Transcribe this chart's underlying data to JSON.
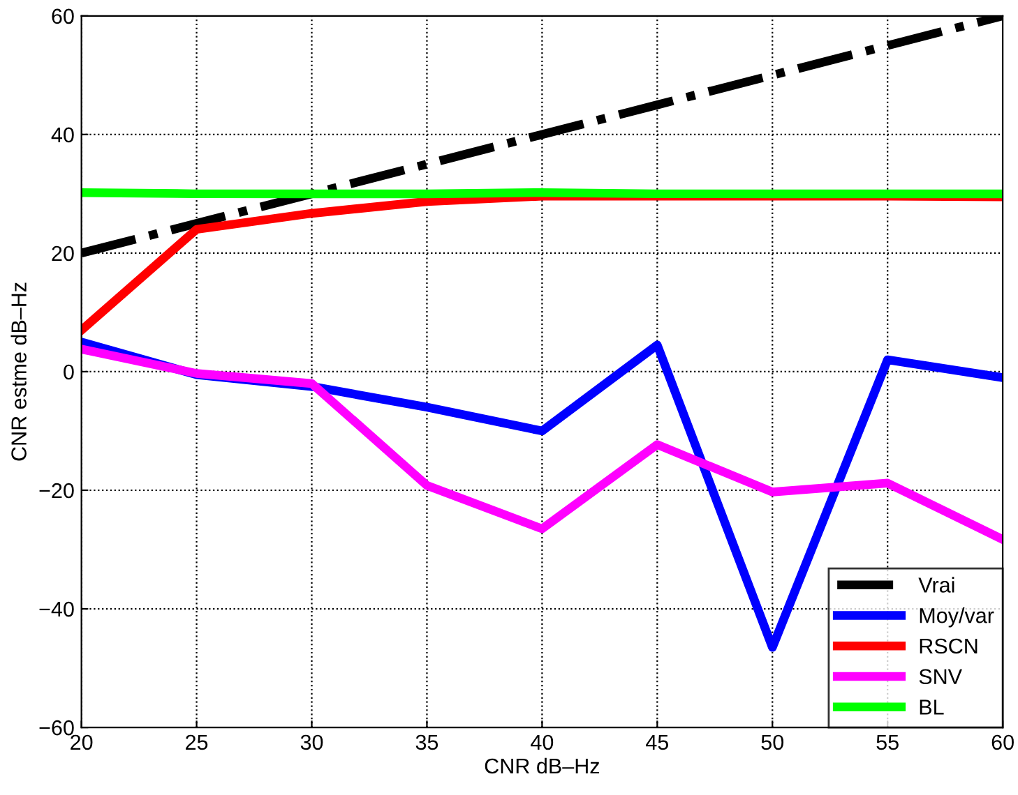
{
  "chart_data": {
    "type": "line",
    "xlabel": "CNR dB–Hz",
    "ylabel": "CNR estme dB–Hz",
    "x": [
      20,
      25,
      30,
      35,
      40,
      45,
      50,
      55,
      60
    ],
    "series": [
      {
        "name": "Vrai",
        "color": "#000000",
        "line_style": "dashdot",
        "values": [
          20,
          25,
          30,
          35,
          40,
          45,
          50,
          55,
          60
        ]
      },
      {
        "name": "Moy/var",
        "color": "#0000ff",
        "values": [
          5,
          -0.5,
          -2.5,
          -6,
          -10,
          4.5,
          -46.5,
          2,
          -1
        ]
      },
      {
        "name": "RSCN",
        "color": "#ff0000",
        "values": [
          7,
          24,
          26.7,
          28.7,
          29.6,
          29.6,
          29.6,
          29.6,
          29.5
        ]
      },
      {
        "name": "SNV",
        "color": "#ff00ff",
        "values": [
          3.8,
          -0.3,
          -2,
          -19.2,
          -26.5,
          -12.3,
          -20.3,
          -18.8,
          -28.3
        ]
      },
      {
        "name": "BL",
        "color": "#00ff00",
        "values": [
          30.2,
          30,
          30,
          30,
          30.2,
          30,
          30,
          30,
          30
        ]
      }
    ],
    "xlim": [
      20,
      60
    ],
    "ylim": [
      -60,
      60
    ],
    "xticks": [
      20,
      25,
      30,
      35,
      40,
      45,
      50,
      55,
      60
    ],
    "yticks": [
      -60,
      -40,
      -20,
      0,
      20,
      40,
      60
    ],
    "grid": true,
    "legend": "bottom right",
    "marker": "none",
    "line_style": "solid"
  }
}
